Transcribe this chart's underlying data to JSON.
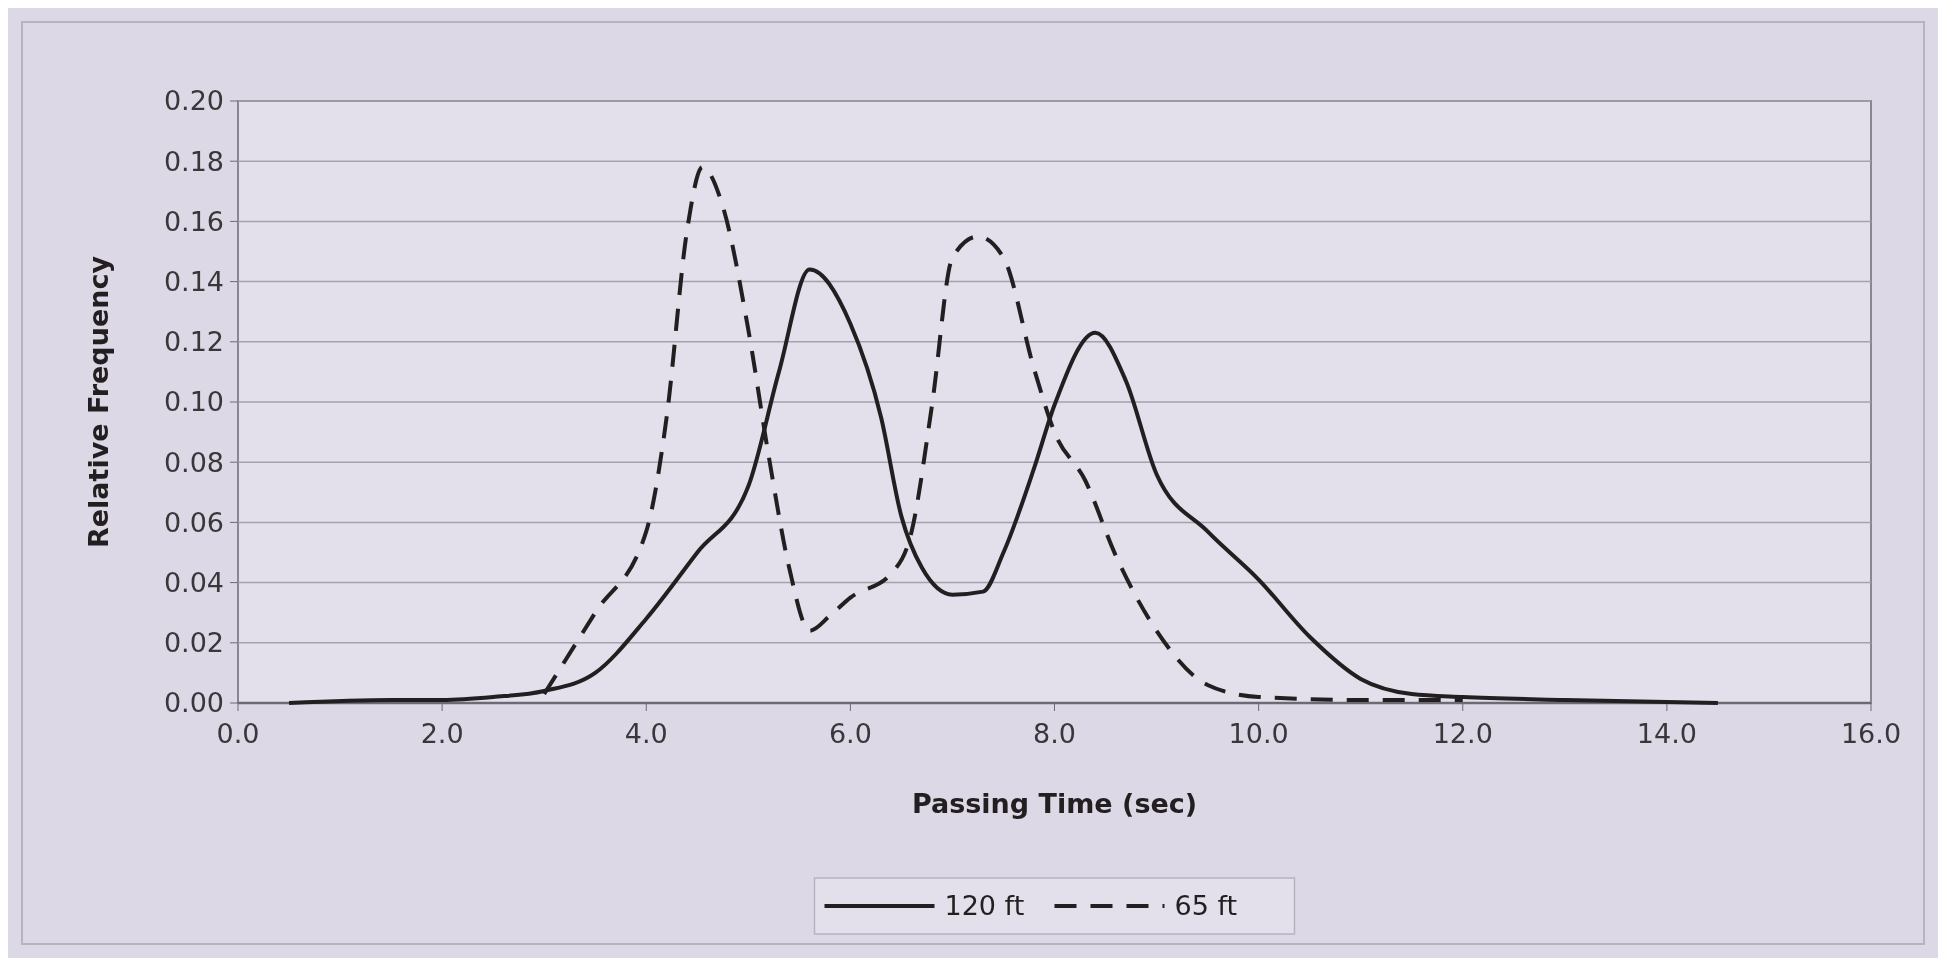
{
  "chart_data": {
    "type": "line",
    "xlabel": "Passing Time (sec)",
    "ylabel": "Relative Frequency",
    "xlim": [
      0,
      16
    ],
    "xticks": [
      {
        "value": 0,
        "label": "0.0"
      },
      {
        "value": 2,
        "label": "2.0"
      },
      {
        "value": 4,
        "label": "4.0"
      },
      {
        "value": 6,
        "label": "6.0"
      },
      {
        "value": 8,
        "label": "8.0"
      },
      {
        "value": 10,
        "label": "10.0"
      },
      {
        "value": 12,
        "label": "12.0"
      },
      {
        "value": 14,
        "label": "14.0"
      },
      {
        "value": 16,
        "label": "16.0"
      }
    ],
    "ylim": [
      0,
      0.2
    ],
    "yticks": [
      {
        "value": 0,
        "label": "0.00"
      },
      {
        "value": 0.02,
        "label": "0.02"
      },
      {
        "value": 0.04,
        "label": "0.04"
      },
      {
        "value": 0.06,
        "label": "0.06"
      },
      {
        "value": 0.08,
        "label": "0.08"
      },
      {
        "value": 0.1,
        "label": "0.10"
      },
      {
        "value": 0.12,
        "label": "0.12"
      },
      {
        "value": 0.14,
        "label": "0.14"
      },
      {
        "value": 0.16,
        "label": "0.16"
      },
      {
        "value": 0.18,
        "label": "0.18"
      },
      {
        "value": 0.2,
        "label": "0.20"
      }
    ],
    "grid": "y",
    "legend": "bottom",
    "series": [
      {
        "name": "120 ft",
        "color": "#231f20",
        "line_style": "solid",
        "x": [
          0.5,
          1.5,
          2.0,
          2.5,
          3.0,
          3.5,
          4.0,
          4.5,
          5.0,
          5.3,
          5.6,
          6.0,
          6.3,
          6.5,
          6.7,
          7.0,
          7.3,
          7.5,
          7.8,
          8.0,
          8.4,
          8.7,
          9.0,
          9.5,
          10.0,
          10.5,
          11.0,
          11.5,
          12.0,
          13.0,
          14.5
        ],
        "values": [
          0,
          0.001,
          0.001,
          0.002,
          0.004,
          0.01,
          0.028,
          0.05,
          0.072,
          0.11,
          0.144,
          0.126,
          0.095,
          0.062,
          0.045,
          0.036,
          0.037,
          0.05,
          0.078,
          0.099,
          0.123,
          0.107,
          0.076,
          0.057,
          0.041,
          0.022,
          0.008,
          0.003,
          0.002,
          0.001,
          0
        ]
      },
      {
        "name": "65 ft",
        "color": "#231f20",
        "line_style": "dashed",
        "x": [
          3.0,
          3.5,
          4.0,
          4.2,
          4.4,
          4.55,
          4.75,
          5.0,
          5.2,
          5.4,
          5.6,
          5.8,
          6.0,
          6.4,
          6.6,
          6.8,
          7.0,
          7.25,
          7.5,
          7.8,
          8.0,
          8.3,
          8.6,
          9.0,
          9.5,
          10.0,
          11.0,
          12.0
        ],
        "values": [
          0.003,
          0.03,
          0.057,
          0.095,
          0.157,
          0.178,
          0.165,
          0.124,
          0.082,
          0.045,
          0.024,
          0.029,
          0.035,
          0.043,
          0.057,
          0.099,
          0.148,
          0.155,
          0.148,
          0.111,
          0.09,
          0.074,
          0.049,
          0.024,
          0.006,
          0.002,
          0.001,
          0.001
        ]
      }
    ]
  }
}
